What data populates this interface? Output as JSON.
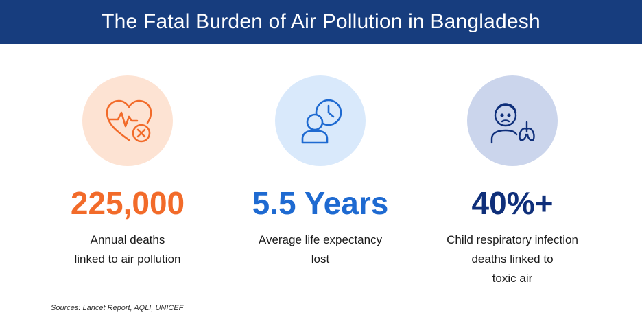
{
  "title": "The Fatal Burden of Air Pollution in Bangladesh",
  "colors": {
    "header_bg": "#173d7e",
    "orange": "#f26b2a",
    "blue": "#1e6ad1",
    "navy": "#0f2f7a"
  },
  "stats": [
    {
      "icon": "heart-pulse-cross-icon",
      "value": "225,000",
      "description": "Annual deaths\nlinked to air pollution",
      "accent": "#f26b2a",
      "circle_bg": "#fde3d3"
    },
    {
      "icon": "person-clock-icon",
      "value": "5.5 Years",
      "description": "Average life expectancy\nlost",
      "accent": "#1e6ad1",
      "circle_bg": "#d9e9fb"
    },
    {
      "icon": "child-lungs-icon",
      "value": "40%+",
      "description": "Child respiratory infection\ndeaths linked to\ntoxic air",
      "accent": "#0f2f7a",
      "circle_bg": "#cbd5ec"
    }
  ],
  "source": "Sources: Lancet Report, AQLI, UNICEF"
}
